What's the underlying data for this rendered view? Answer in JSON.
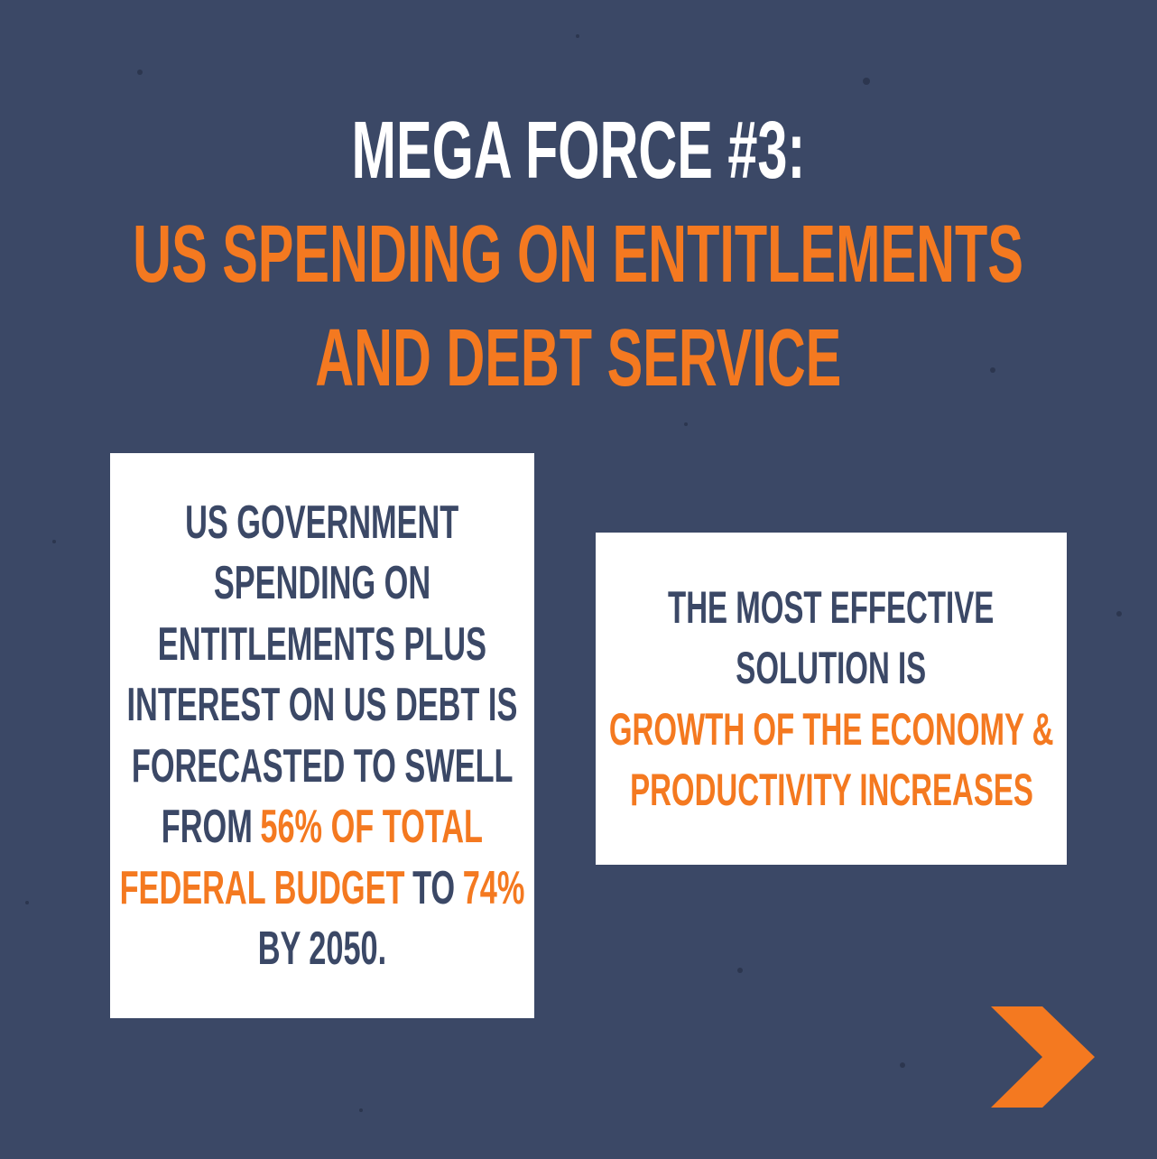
{
  "title": {
    "lines": [
      [
        {
          "text": "MEGA FORCE #3:",
          "color": "#ffffff"
        }
      ],
      [
        {
          "text": "US SPENDING ON ENTITLEMENTS",
          "color": "#f47920"
        }
      ],
      [
        {
          "text": "AND DEBT SERVICE",
          "color": "#f47920"
        }
      ]
    ]
  },
  "left_card": {
    "lines": [
      [
        {
          "text": "US GOVERNMENT",
          "color": "#3b4866"
        }
      ],
      [
        {
          "text": "SPENDING ON",
          "color": "#3b4866"
        }
      ],
      [
        {
          "text": "ENTITLEMENTS PLUS",
          "color": "#3b4866"
        }
      ],
      [
        {
          "text": "INTEREST ON US DEBT IS",
          "color": "#3b4866"
        }
      ],
      [
        {
          "text": "FORECASTED TO SWELL",
          "color": "#3b4866"
        }
      ],
      [
        {
          "text": "FROM",
          "color": "#3b4866"
        },
        {
          "text": "56% OF TOTAL",
          "color": "#f47920"
        }
      ],
      [
        {
          "text": "FEDERAL BUDGET",
          "color": "#f47920"
        },
        {
          "text": "TO",
          "color": "#3b4866"
        },
        {
          "text": "74%",
          "color": "#f47920"
        }
      ],
      [
        {
          "text": "BY 2050.",
          "color": "#3b4866"
        }
      ]
    ]
  },
  "right_card": {
    "lines": [
      [
        {
          "text": "THE MOST EFFECTIVE",
          "color": "#3b4866"
        }
      ],
      [
        {
          "text": "SOLUTION IS",
          "color": "#3b4866"
        }
      ],
      [
        {
          "text": "GROWTH OF THE ECONOMY &",
          "color": "#f47920"
        }
      ],
      [
        {
          "text": "PRODUCTIVITY INCREASES",
          "color": "#f47920"
        }
      ]
    ]
  }
}
